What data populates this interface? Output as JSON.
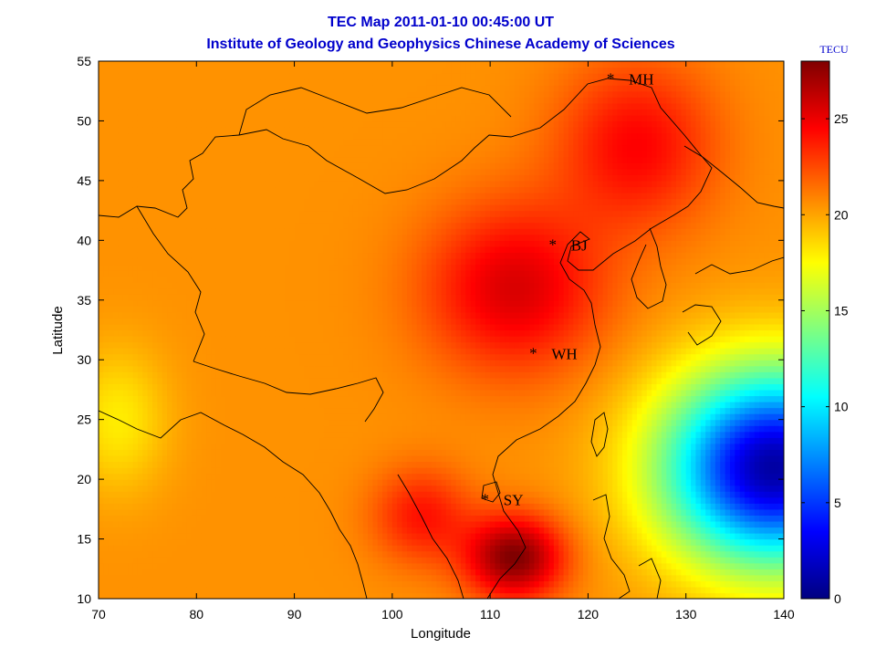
{
  "chart_data": {
    "type": "heatmap",
    "title": "TEC Map 2011-01-10 00:45:00 UT",
    "subtitle": "Institute of Geology and Geophysics Chinese Academy of Sciences",
    "xlabel": "Longitude",
    "ylabel": "Latitude",
    "xlim": [
      70,
      140
    ],
    "ylim": [
      10,
      55
    ],
    "xticks": [
      "70",
      "80",
      "90",
      "100",
      "110",
      "120",
      "130",
      "140"
    ],
    "yticks": [
      "10",
      "15",
      "20",
      "25",
      "30",
      "35",
      "40",
      "45",
      "50",
      "55"
    ],
    "colorbar": {
      "unit": "TECU",
      "range": [
        0,
        28
      ],
      "ticks": [
        "0",
        "5",
        "10",
        "15",
        "20",
        "25"
      ]
    },
    "grid": false,
    "stations": [
      {
        "name": "MH",
        "lon": 122.3,
        "lat": 53.5
      },
      {
        "name": "BJ",
        "lon": 116.4,
        "lat": 39.6
      },
      {
        "name": "WH",
        "lon": 114.4,
        "lat": 30.5
      },
      {
        "name": "SY",
        "lon": 109.5,
        "lat": 18.3
      }
    ],
    "field_features": [
      {
        "feature": "background",
        "tec": 20.5
      },
      {
        "feature": "maximum",
        "lon": 112.5,
        "lat": 36,
        "tec": 25.5
      },
      {
        "feature": "maximum",
        "lon": 125,
        "lat": 48,
        "tec": 24.5
      },
      {
        "feature": "maximum",
        "lon": 112.5,
        "lat": 13.5,
        "tec": 28
      },
      {
        "feature": "maximum",
        "lon": 103,
        "lat": 17,
        "tec": 24
      },
      {
        "feature": "minimum",
        "lon": 139,
        "lat": 21,
        "tec": 1
      },
      {
        "feature": "minimum",
        "lon": 72,
        "lat": 25,
        "tec": 18
      }
    ]
  }
}
